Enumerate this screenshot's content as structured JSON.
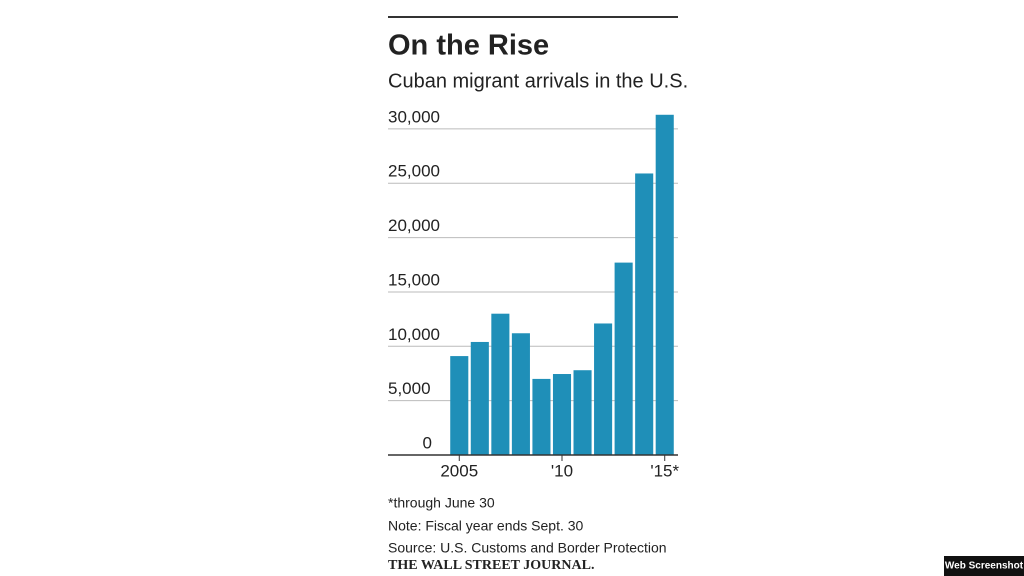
{
  "chart_data": {
    "type": "bar",
    "title": "On the Rise",
    "subtitle": "Cuban migrant arrivals in the U.S.",
    "categories": [
      "2005",
      null,
      null,
      null,
      null,
      "'10",
      null,
      null,
      null,
      null,
      "'15*"
    ],
    "values": [
      9100,
      10400,
      13000,
      11200,
      7000,
      7450,
      7800,
      12100,
      17700,
      25900,
      31300
    ],
    "color": "#1f8fb8",
    "ylim": [
      0,
      31500
    ],
    "yticks": [
      0,
      {
        "value": 5000,
        "label": "5,000"
      },
      {
        "value": 10000,
        "label": "10,000"
      },
      {
        "value": 15000,
        "label": "15,000"
      },
      {
        "value": 20000,
        "label": "20,000"
      },
      {
        "value": 25000,
        "label": "25,000"
      },
      {
        "value": 30000,
        "label": "30,000"
      }
    ],
    "grid": true
  },
  "notes": [
    "*through June 30",
    "Note: Fiscal year ends Sept. 30",
    "Source: U.S. Customs and Border Protection"
  ],
  "publisher": "THE WALL STREET JOURNAL.",
  "badge": "Web Screenshot"
}
